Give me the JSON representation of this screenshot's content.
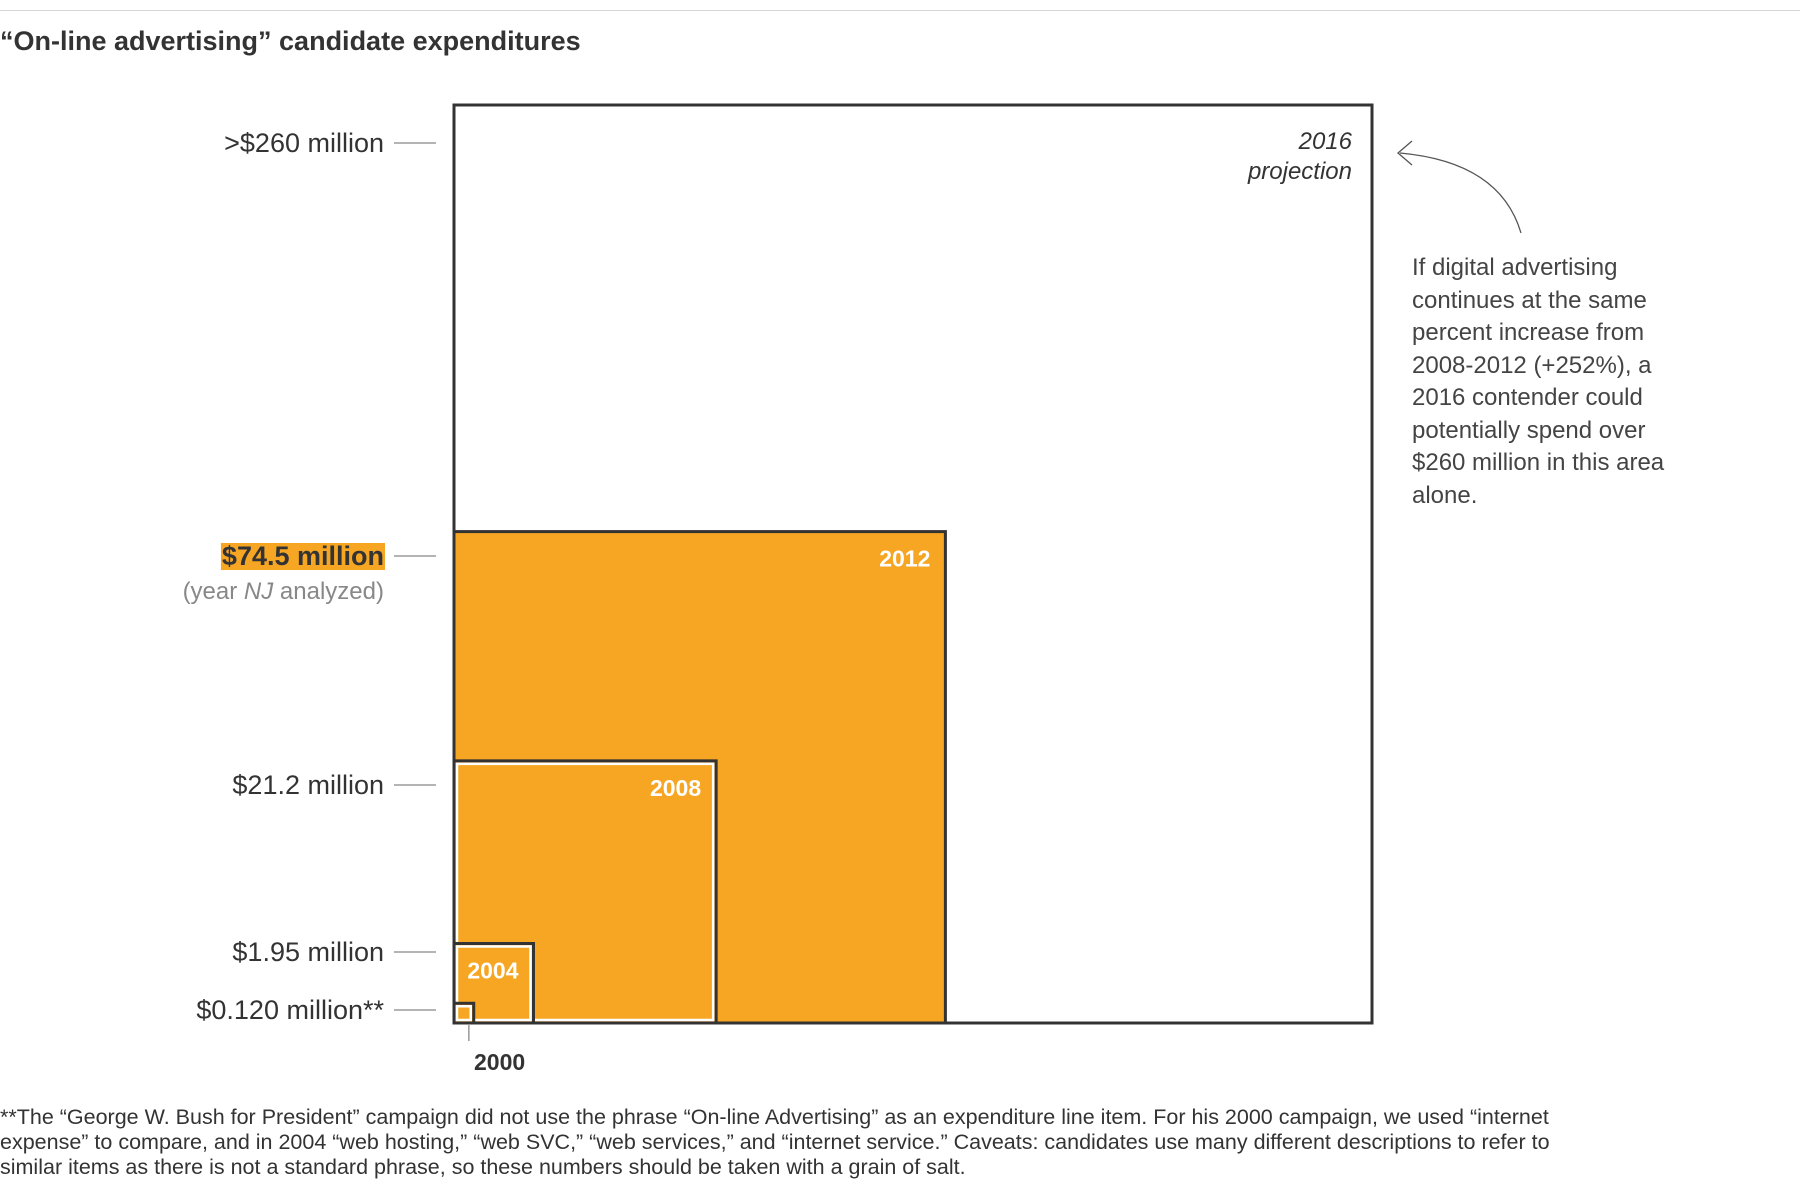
{
  "title": "“On-line advertising” candidate expenditures",
  "chart_data": {
    "type": "nested-square-area",
    "unit": "million USD",
    "series": [
      {
        "year": "2000",
        "value": 0.12,
        "label": "$0.120 million**",
        "box_label": "2000",
        "highlight": false
      },
      {
        "year": "2004",
        "value": 1.95,
        "label": "$1.95 million",
        "box_label": "2004",
        "highlight": false
      },
      {
        "year": "2008",
        "value": 21.2,
        "label": "$21.2 million",
        "box_label": "2008",
        "highlight": false
      },
      {
        "year": "2012",
        "value": 74.5,
        "label": "$74.5 million",
        "sublabel_pre": "(year ",
        "sublabel_em": "NJ",
        "sublabel_post": " analyzed)",
        "box_label": "2012",
        "highlight": true
      },
      {
        "year": "2016",
        "value": 260,
        "label": ">$260 million",
        "box_label_lines": [
          "2016",
          "projection"
        ],
        "projection": true
      }
    ]
  },
  "annotation": "If digital advertising continues at the same percent increase from 2008-2012 (+252%), a 2016 contender could potentially spend over $260 million in this area alone.",
  "footnote": "**The “George W. Bush for President” campaign did not use the phrase “On-line Advertising” as an expenditure line item. For his 2000 campaign, we used “internet expense” to compare, and in 2004 “web hosting,” “web SVC,” “web services,” and “internet service.” Caveats: candidates use many different descriptions to refer to similar items as there is not a standard phrase, so these numbers should be taken with a grain of salt.",
  "colors": {
    "fill": "#f6a623",
    "outline": "#333333",
    "inner_outline": "#ffffff",
    "highlight": "#f6a623"
  },
  "icons": {
    "arrow": "curved-arrow-icon"
  }
}
